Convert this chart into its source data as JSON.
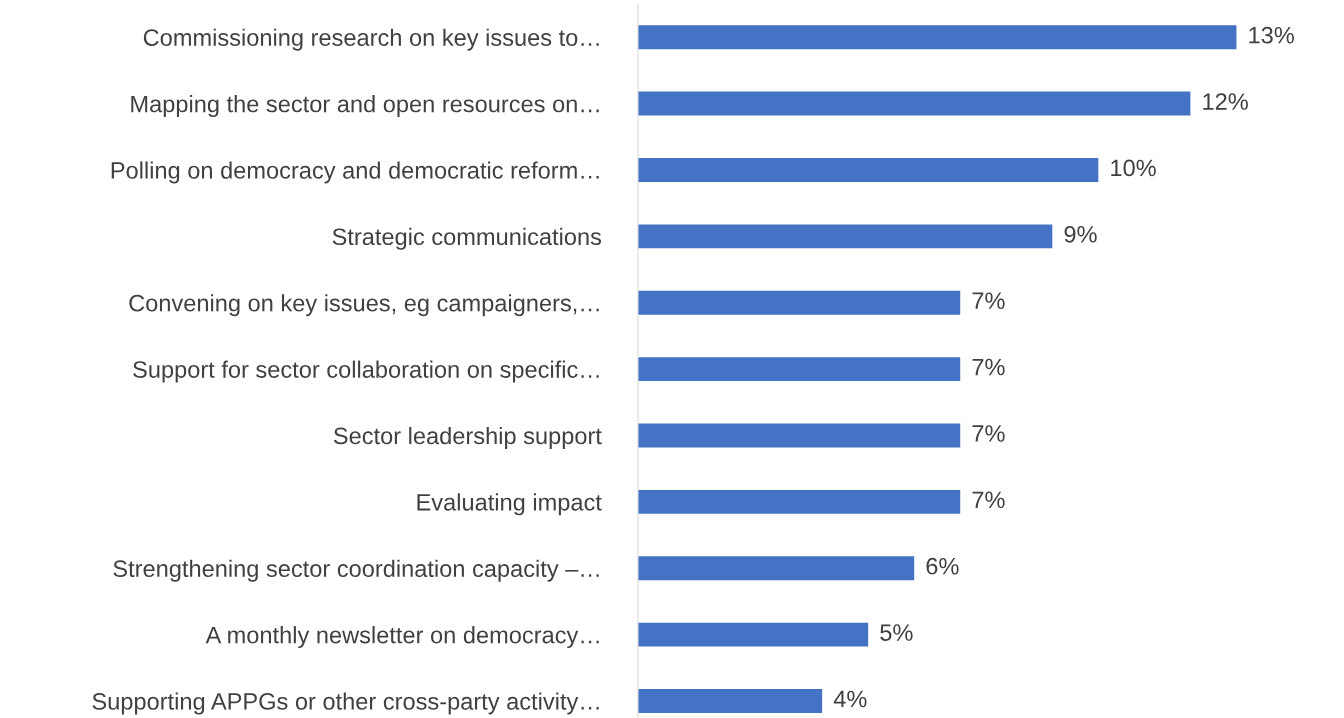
{
  "chart_data": {
    "type": "bar",
    "orientation": "horizontal",
    "categories": [
      "Commissioning research on key issues to…",
      "Mapping the sector and open resources on…",
      "Polling on democracy and democratic reform…",
      "Strategic communications",
      "Convening on key issues, eg campaigners,…",
      "Support for sector collaboration on specific…",
      "Sector leadership support",
      "Evaluating impact",
      "Strengthening sector coordination capacity –…",
      "A monthly newsletter on democracy…",
      "Supporting APPGs or other cross-party activity…"
    ],
    "values": [
      13,
      12,
      10,
      9,
      7,
      7,
      7,
      7,
      6,
      5,
      4
    ],
    "value_labels": [
      "13%",
      "12%",
      "10%",
      "9%",
      "7%",
      "7%",
      "7%",
      "7%",
      "6%",
      "5%",
      "4%"
    ],
    "color": "#4472c4",
    "tick_labels": "y"
  }
}
